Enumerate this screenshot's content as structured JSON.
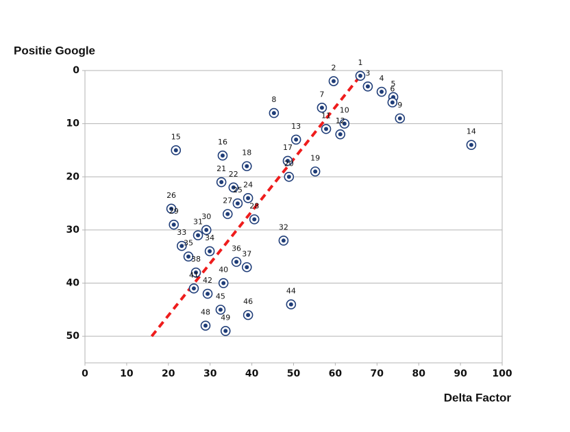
{
  "chart_data": {
    "type": "scatter",
    "x_label": "Delta Factor",
    "y_label": "Positie Google",
    "xlim": [
      0,
      100
    ],
    "xticks": [
      0,
      10,
      20,
      30,
      40,
      50,
      60,
      70,
      80,
      90,
      100
    ],
    "ylim": [
      55,
      0
    ],
    "yticks": [
      0,
      10,
      20,
      30,
      40,
      50
    ],
    "y_inverted": true,
    "grid": true,
    "color": "#1f3d78",
    "labels": [
      1,
      2,
      3,
      4,
      5,
      6,
      7,
      8,
      9,
      10,
      11,
      12,
      13,
      14,
      15,
      16,
      17,
      18,
      19,
      20,
      21,
      22,
      24,
      25,
      26,
      27,
      28,
      29,
      30,
      31,
      32,
      33,
      34,
      35,
      36,
      37,
      38,
      40,
      41,
      42,
      44,
      45,
      46,
      48,
      49
    ],
    "x": [
      66.0,
      59.6,
      67.8,
      71.1,
      73.9,
      73.7,
      56.8,
      45.3,
      75.5,
      62.2,
      57.8,
      61.2,
      50.6,
      92.6,
      21.8,
      33.0,
      48.6,
      38.8,
      55.2,
      48.9,
      32.7,
      35.6,
      39.1,
      36.6,
      20.7,
      34.2,
      40.6,
      21.3,
      29.1,
      27.1,
      47.6,
      23.2,
      29.9,
      24.8,
      36.3,
      38.8,
      26.6,
      33.2,
      26.1,
      29.4,
      49.4,
      32.5,
      39.1,
      28.9,
      33.7
    ],
    "values": [
      1,
      2,
      3,
      4,
      5,
      6,
      7,
      8,
      9,
      10,
      11,
      12,
      13,
      14,
      15,
      16,
      17,
      18,
      19,
      20,
      21,
      22,
      24,
      25,
      26,
      27,
      28,
      29,
      30,
      31,
      32,
      33,
      34,
      35,
      36,
      37,
      38,
      40,
      41,
      42,
      44,
      45,
      46,
      48,
      49
    ],
    "trendline": {
      "x": [
        16,
        66
      ],
      "values": [
        50,
        1
      ],
      "color": "#ee1c1c",
      "dashed": true
    }
  }
}
